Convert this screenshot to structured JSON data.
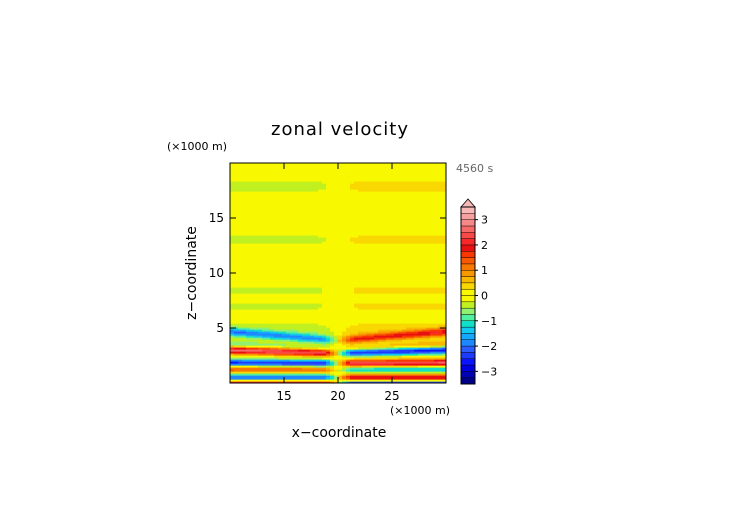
{
  "chart_data": {
    "type": "heatmap",
    "title": "zonal velocity",
    "time_label": "4560 s",
    "xlabel": "x−coordinate",
    "ylabel": "z−coordinate",
    "x_unit": "(×1000 m)",
    "y_unit": "(×1000 m)",
    "xlim": [
      10,
      30
    ],
    "ylim": [
      0,
      20
    ],
    "x_ticks": [
      15,
      20,
      25
    ],
    "y_ticks": [
      5,
      10,
      15
    ],
    "colorbar": {
      "levels": [
        -3.5,
        -3.25,
        -3.0,
        -2.75,
        -2.5,
        -2.25,
        -2.0,
        -1.75,
        -1.5,
        -1.25,
        -1.0,
        -0.75,
        -0.5,
        -0.25,
        0.0,
        0.25,
        0.5,
        0.75,
        1.0,
        1.25,
        1.5,
        1.75,
        2.0,
        2.25,
        2.5,
        2.75,
        3.0,
        3.25,
        3.5
      ],
      "colors": [
        "#000088",
        "#0000b4",
        "#0000e0",
        "#0a14ff",
        "#1e3cff",
        "#2a5cff",
        "#1e88ff",
        "#14a8ff",
        "#10c8f0",
        "#10e0c8",
        "#50f0a0",
        "#90f070",
        "#c0f020",
        "#f8f800",
        "#f8f800",
        "#f8d800",
        "#f8b800",
        "#f89800",
        "#f87800",
        "#f85800",
        "#f83800",
        "#e81010",
        "#f82828",
        "#f84848",
        "#f86868",
        "#f88888",
        "#f8a0a0",
        "#f8b8b8"
      ],
      "tick_labels": [
        "3",
        "2",
        "1",
        "0",
        "−1",
        "−2",
        "−3"
      ],
      "tick_values": [
        3,
        2,
        1,
        0,
        -1,
        -2,
        -3
      ],
      "extend": "max"
    }
  }
}
